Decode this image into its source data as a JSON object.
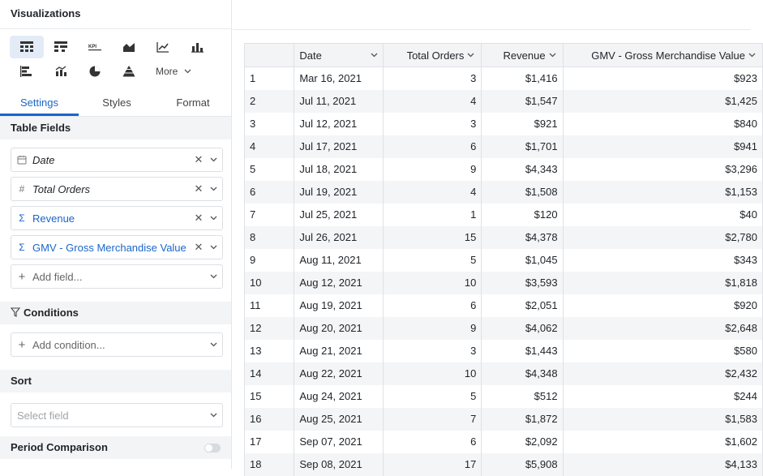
{
  "panel": {
    "title": "Visualizations",
    "more_label": "More",
    "tabs": [
      {
        "label": "Settings",
        "active": true
      },
      {
        "label": "Styles",
        "active": false
      },
      {
        "label": "Format",
        "active": false
      }
    ],
    "table_fields_title": "Table Fields",
    "fields": [
      {
        "label": "Date",
        "kind": "dimension",
        "icon": "calendar-icon",
        "glyph": ""
      },
      {
        "label": "Total Orders",
        "kind": "dimension",
        "icon": "hash-icon",
        "glyph": "#"
      },
      {
        "label": "Revenue",
        "kind": "measure",
        "icon": "sigma-icon",
        "glyph": "Σ"
      },
      {
        "label": "GMV - Gross Merchandise Value",
        "kind": "measure",
        "icon": "sigma-icon",
        "glyph": "Σ"
      }
    ],
    "add_field_label": "Add field...",
    "conditions_title": "Conditions",
    "add_condition_label": "Add condition...",
    "sort_title": "Sort",
    "sort_placeholder": "Select field",
    "period_comparison_title": "Period Comparison",
    "period_comparison_enabled": false,
    "accent_color": "#1a66c9"
  },
  "table": {
    "columns": [
      "",
      "Date",
      "Total Orders",
      "Revenue",
      "GMV - Gross Merchandise Value"
    ],
    "rows": [
      [
        "1",
        "Mar 16, 2021",
        "3",
        "$1,416",
        "$923"
      ],
      [
        "2",
        "Jul 11, 2021",
        "4",
        "$1,547",
        "$1,425"
      ],
      [
        "3",
        "Jul 12, 2021",
        "3",
        "$921",
        "$840"
      ],
      [
        "4",
        "Jul 17, 2021",
        "6",
        "$1,701",
        "$941"
      ],
      [
        "5",
        "Jul 18, 2021",
        "9",
        "$4,343",
        "$3,296"
      ],
      [
        "6",
        "Jul 19, 2021",
        "4",
        "$1,508",
        "$1,153"
      ],
      [
        "7",
        "Jul 25, 2021",
        "1",
        "$120",
        "$40"
      ],
      [
        "8",
        "Jul 26, 2021",
        "15",
        "$4,378",
        "$2,780"
      ],
      [
        "9",
        "Aug 11, 2021",
        "5",
        "$1,045",
        "$343"
      ],
      [
        "10",
        "Aug 12, 2021",
        "10",
        "$3,593",
        "$1,818"
      ],
      [
        "11",
        "Aug 19, 2021",
        "6",
        "$2,051",
        "$920"
      ],
      [
        "12",
        "Aug 20, 2021",
        "9",
        "$4,062",
        "$2,648"
      ],
      [
        "13",
        "Aug 21, 2021",
        "3",
        "$1,443",
        "$580"
      ],
      [
        "14",
        "Aug 22, 2021",
        "10",
        "$4,348",
        "$2,432"
      ],
      [
        "15",
        "Aug 24, 2021",
        "5",
        "$512",
        "$244"
      ],
      [
        "16",
        "Aug 25, 2021",
        "7",
        "$1,872",
        "$1,583"
      ],
      [
        "17",
        "Sep 07, 2021",
        "6",
        "$2,092",
        "$1,602"
      ],
      [
        "18",
        "Sep 08, 2021",
        "17",
        "$5,908",
        "$4,133"
      ]
    ]
  }
}
